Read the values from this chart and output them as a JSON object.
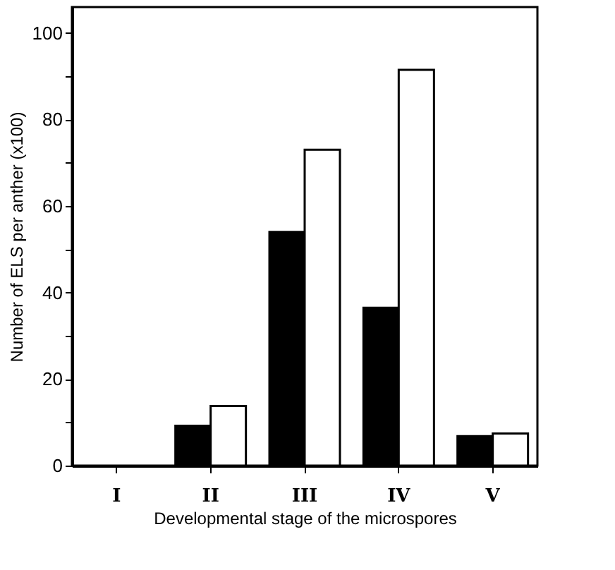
{
  "chart_data": {
    "type": "bar",
    "xlabel": "Developmental stage of the microspores",
    "ylabel": "Number of ELS per anther (x100)",
    "categories": [
      "I",
      "II",
      "III",
      "IV",
      "V"
    ],
    "series": [
      {
        "color": "#000000",
        "values": [
          0,
          9.2,
          54,
          36.5,
          6.8
        ]
      },
      {
        "color": "#ffffff",
        "values": [
          0,
          13.8,
          73,
          91.5,
          7.4
        ]
      }
    ],
    "ylim": [
      0,
      106
    ],
    "yticks": [
      0,
      {
        "value": 10,
        "label": null
      },
      20,
      {
        "value": 30,
        "label": null
      },
      40,
      {
        "value": 50,
        "label": null
      },
      60,
      {
        "value": 70,
        "label": null
      },
      80,
      {
        "value": 90,
        "label": null
      },
      100
    ],
    "grid": false
  }
}
